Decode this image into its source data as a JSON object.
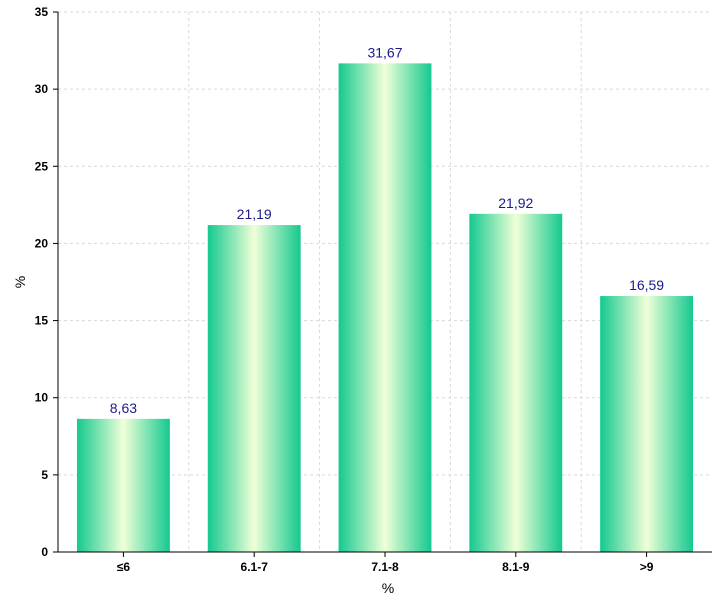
{
  "chart_data": {
    "type": "bar",
    "categories": [
      "≤6",
      "6.1-7",
      "7.1-8",
      "8.1-9",
      ">9"
    ],
    "values": [
      8.63,
      21.19,
      31.67,
      21.92,
      16.59
    ],
    "value_labels": [
      "8,63",
      "21,19",
      "31,67",
      "21,92",
      "16,59"
    ],
    "xlabel": "%",
    "ylabel": "%",
    "ylim": [
      0,
      35
    ],
    "yticks": [
      "0",
      "5",
      "10",
      "15",
      "20",
      "25",
      "30",
      "35"
    ],
    "grid": true,
    "legend": "none",
    "colors": {
      "bar_edge": "#14c98f",
      "bar_center": "#f0ffd8",
      "label": "#1a1a8c",
      "grid": "#d9d9d9",
      "axis": "#000000"
    }
  }
}
